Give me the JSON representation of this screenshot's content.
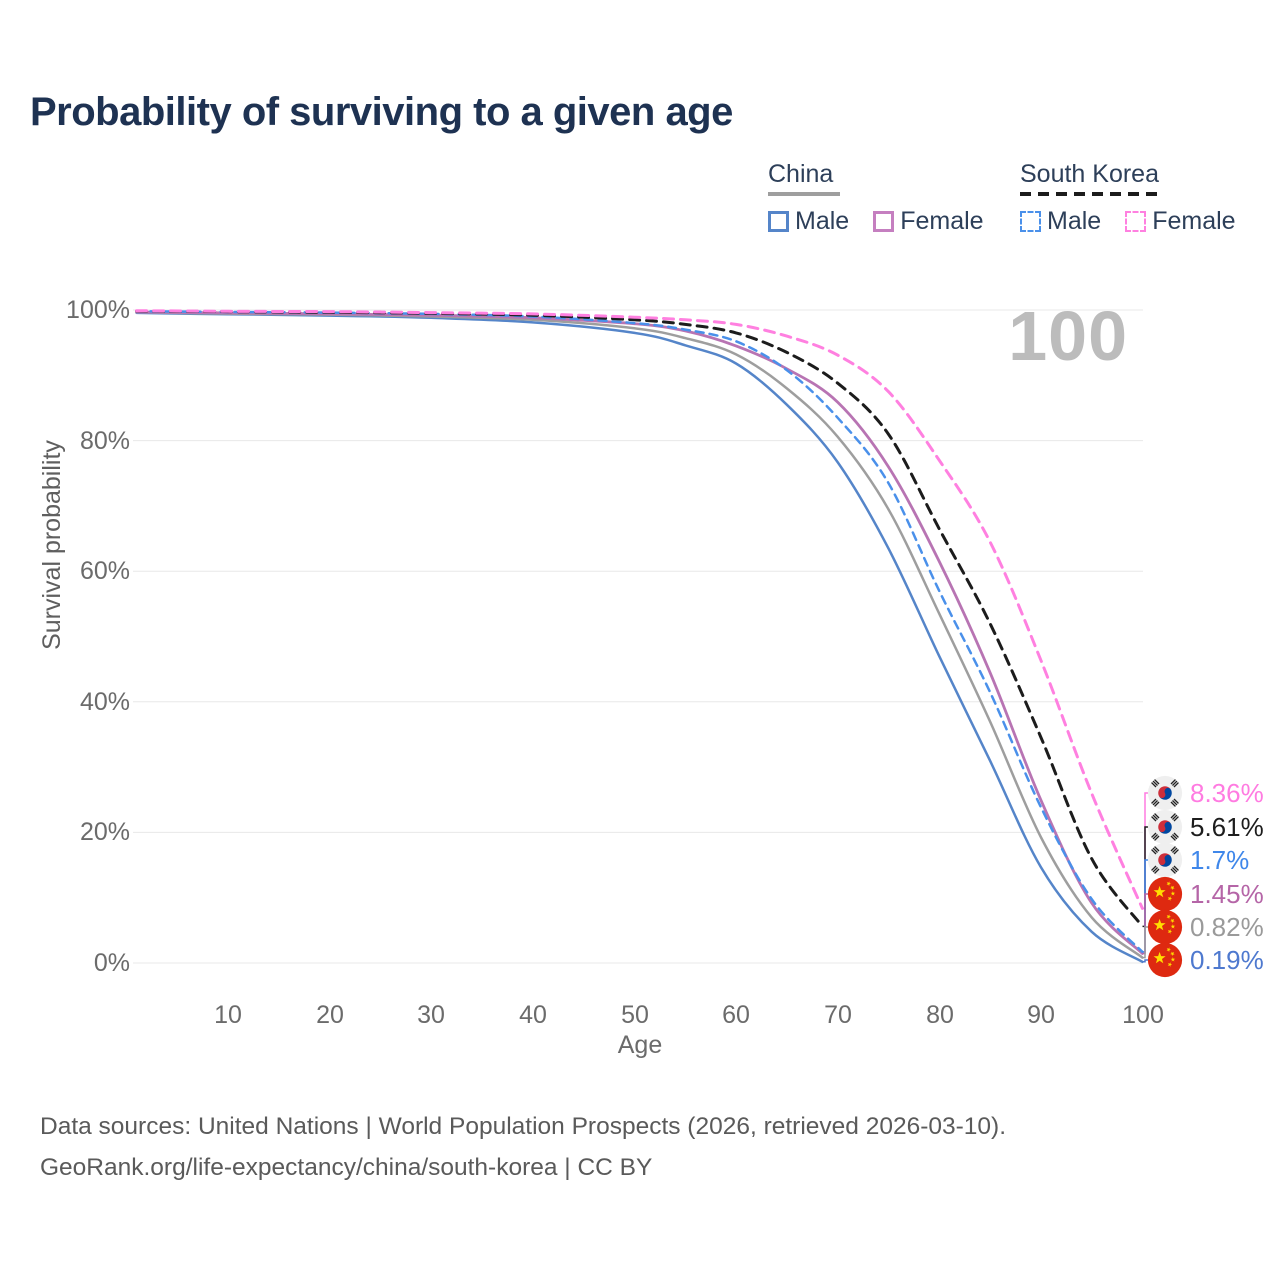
{
  "title": "Probability of surviving to a given age",
  "watermark": "100",
  "legend": {
    "groups": [
      {
        "label": "China",
        "line_style": "solid",
        "rule_color": "#9e9e9e",
        "items": [
          {
            "label": "Male",
            "color": "#5585c9"
          },
          {
            "label": "Female",
            "color": "#c57fc0"
          }
        ]
      },
      {
        "label": "South Korea",
        "line_style": "dashed",
        "rule_color": "#1c1c1c",
        "items": [
          {
            "label": "Male",
            "color": "#4a90ea"
          },
          {
            "label": "Female",
            "color": "#ff80e0"
          }
        ]
      }
    ]
  },
  "axes": {
    "x": {
      "label": "Age",
      "ticks": [
        "10",
        "20",
        "30",
        "40",
        "50",
        "60",
        "70",
        "80",
        "90",
        "100"
      ]
    },
    "y": {
      "label": "Survival probability",
      "ticks": [
        "0%",
        "20%",
        "40%",
        "60%",
        "80%",
        "100%"
      ]
    }
  },
  "end_labels": [
    {
      "value": "8.36%",
      "color": "#ff7be1",
      "flag": "south-korea"
    },
    {
      "value": "5.61%",
      "color": "#1d1d1d",
      "flag": "south-korea"
    },
    {
      "value": "1.7%",
      "color": "#3f87ea",
      "flag": "south-korea"
    },
    {
      "value": "1.45%",
      "color": "#b565a7",
      "flag": "china"
    },
    {
      "value": "0.82%",
      "color": "#9a9a9a",
      "flag": "china"
    },
    {
      "value": "0.19%",
      "color": "#4e79cf",
      "flag": "china"
    }
  ],
  "footer": {
    "line1": "Data sources: United Nations | World Population Prospects (2026, retrieved 2026-03-10).",
    "line2": "GeoRank.org/life-expectancy/china/south-korea | CC BY"
  },
  "chart_data": {
    "type": "line",
    "title": "Probability of surviving to a given age",
    "xlabel": "Age",
    "ylabel": "Survival probability",
    "xlim": [
      1,
      100
    ],
    "ylim": [
      0,
      100
    ],
    "grid": "horizontal",
    "legend_position": "top-right",
    "x": [
      1,
      10,
      20,
      30,
      40,
      50,
      55,
      60,
      65,
      70,
      75,
      80,
      85,
      90,
      95,
      100
    ],
    "series": [
      {
        "name": "South Korea Female",
        "country": "South Korea",
        "sex": "Female",
        "color": "#ff80e0",
        "dash": "dashed",
        "end_label": "8.36%",
        "values": [
          99.9,
          99.8,
          99.75,
          99.6,
          99.4,
          98.9,
          98.5,
          97.8,
          96.0,
          93.1,
          87.5,
          77.0,
          64.5,
          46.4,
          26.0,
          8.36
        ]
      },
      {
        "name": "South Korea",
        "country": "South Korea",
        "sex": "Both",
        "color": "#1c1c1c",
        "dash": "dashed",
        "end_label": "5.61%",
        "values": [
          99.85,
          99.75,
          99.65,
          99.5,
          99.2,
          98.5,
          97.8,
          96.5,
          93.5,
          88.8,
          81.0,
          66.5,
          52.0,
          34.6,
          16.0,
          5.61
        ]
      },
      {
        "name": "South Korea Male",
        "country": "South Korea",
        "sex": "Male",
        "color": "#4a90ea",
        "dash": "dashed",
        "end_label": "1.7%",
        "values": [
          99.8,
          99.7,
          99.6,
          99.4,
          99.0,
          98.0,
          97.0,
          95.2,
          90.8,
          83.5,
          73.5,
          57.0,
          41.5,
          23.9,
          9.8,
          1.7
        ]
      },
      {
        "name": "China Female",
        "country": "China",
        "sex": "Female",
        "color": "#b874b3",
        "dash": "solid",
        "end_label": "1.45%",
        "values": [
          99.7,
          99.55,
          99.4,
          99.2,
          98.8,
          97.9,
          96.8,
          94.5,
          91.0,
          85.9,
          76.0,
          61.5,
          44.5,
          25.0,
          9.2,
          1.45
        ]
      },
      {
        "name": "China",
        "country": "China",
        "sex": "Both",
        "color": "#9e9e9e",
        "dash": "solid",
        "end_label": "0.82%",
        "values": [
          99.65,
          99.45,
          99.3,
          99.0,
          98.5,
          97.2,
          95.7,
          93.2,
          88.0,
          80.6,
          69.5,
          53.5,
          37.0,
          19.3,
          7.0,
          0.82
        ]
      },
      {
        "name": "China Male",
        "country": "China",
        "sex": "Male",
        "color": "#5585c9",
        "dash": "solid",
        "end_label": "0.19%",
        "values": [
          99.55,
          99.35,
          99.15,
          98.8,
          98.1,
          96.5,
          94.6,
          91.8,
          85.5,
          76.7,
          63.5,
          47.0,
          31.0,
          14.7,
          4.8,
          0.19
        ]
      }
    ]
  }
}
